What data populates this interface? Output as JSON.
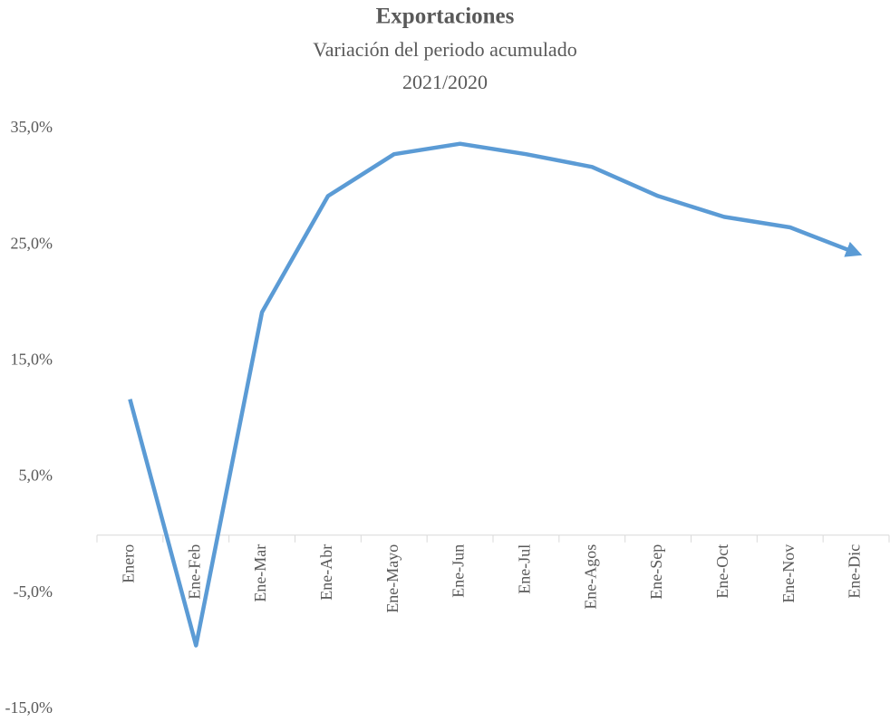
{
  "chart_data": {
    "type": "line",
    "title": "Exportaciones",
    "subtitle": [
      "Variación del periodo acumulado",
      "2021/2020"
    ],
    "categories": [
      "Enero",
      "Ene-Feb",
      "Ene-Mar",
      "Ene-Abr",
      "Ene-Mayo",
      "Ene-Jun",
      "Ene-Jul",
      "Ene-Agos",
      "Ene-Sep",
      "Ene-Oct",
      "Ene-Nov",
      "Ene-Dic"
    ],
    "series": [
      {
        "name": "Exportaciones",
        "color": "#5b9bd5",
        "values": [
          11.7,
          -9.5,
          19.2,
          29.2,
          32.8,
          33.7,
          32.8,
          31.7,
          29.2,
          27.4,
          26.5,
          24.3
        ]
      }
    ],
    "ylim": [
      -15,
      35
    ],
    "yticks": [
      {
        "value": 35,
        "label": "35,0%"
      },
      {
        "value": 25,
        "label": "25,0%"
      },
      {
        "value": 15,
        "label": "15,0%"
      },
      {
        "value": 5,
        "label": "5,0%"
      },
      {
        "value": -5,
        "label": "-5,0%"
      },
      {
        "value": -15,
        "label": "-15,0%"
      }
    ],
    "grid": false
  }
}
